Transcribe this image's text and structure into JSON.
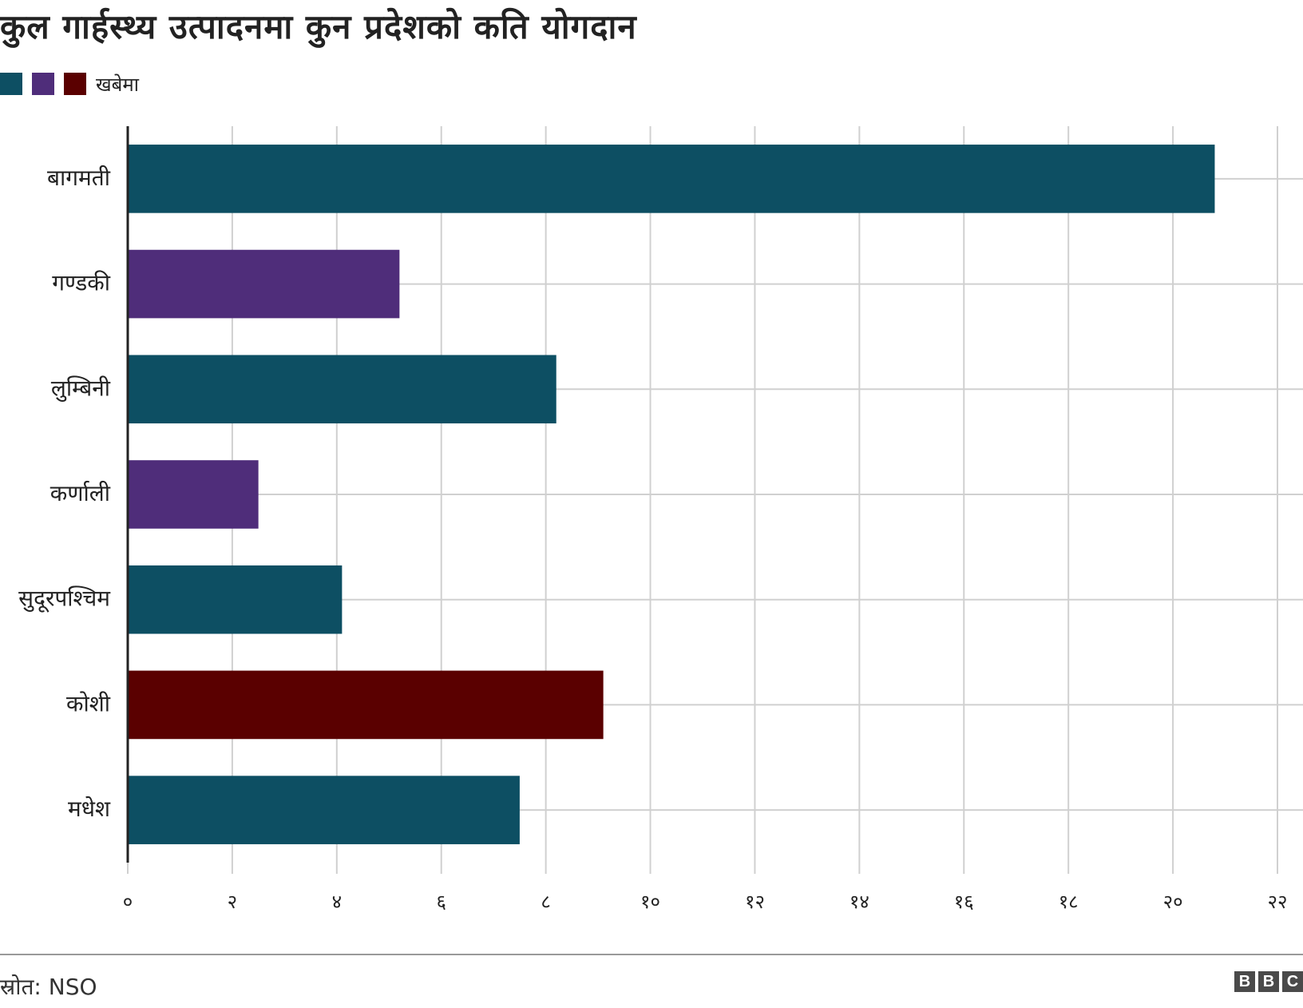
{
  "title": "कुल गार्हस्थ्य उत्पादनमा कुन प्रदेशको कति योगदान",
  "legend": {
    "swatches": [
      "#0d4f63",
      "#4f2d7a",
      "#5a0000"
    ],
    "label": "खबेमा"
  },
  "source": "स्रोत: NSO",
  "logo_letters": [
    "B",
    "B",
    "C"
  ],
  "chart_data": {
    "type": "bar",
    "orientation": "horizontal",
    "categories": [
      "बागमती",
      "गण्डकी",
      "लुम्बिनी",
      "कर्णाली",
      "सुदूरपश्चिम",
      "कोशी",
      "मधेश"
    ],
    "values": [
      20.8,
      5.2,
      8.2,
      2.5,
      4.1,
      9.1,
      7.5
    ],
    "bar_colors": [
      "#0d4f63",
      "#4f2d7a",
      "#0d4f63",
      "#4f2d7a",
      "#0d4f63",
      "#5a0000",
      "#0d4f63"
    ],
    "xlim": [
      0,
      22
    ],
    "xticks": [
      0,
      2,
      4,
      6,
      8,
      10,
      12,
      14,
      16,
      18,
      20,
      22
    ],
    "xtick_labels": [
      "०",
      "२",
      "४",
      "६",
      "८",
      "१०",
      "१२",
      "१४",
      "१६",
      "१८",
      "२०",
      "२२"
    ],
    "grid": true
  }
}
